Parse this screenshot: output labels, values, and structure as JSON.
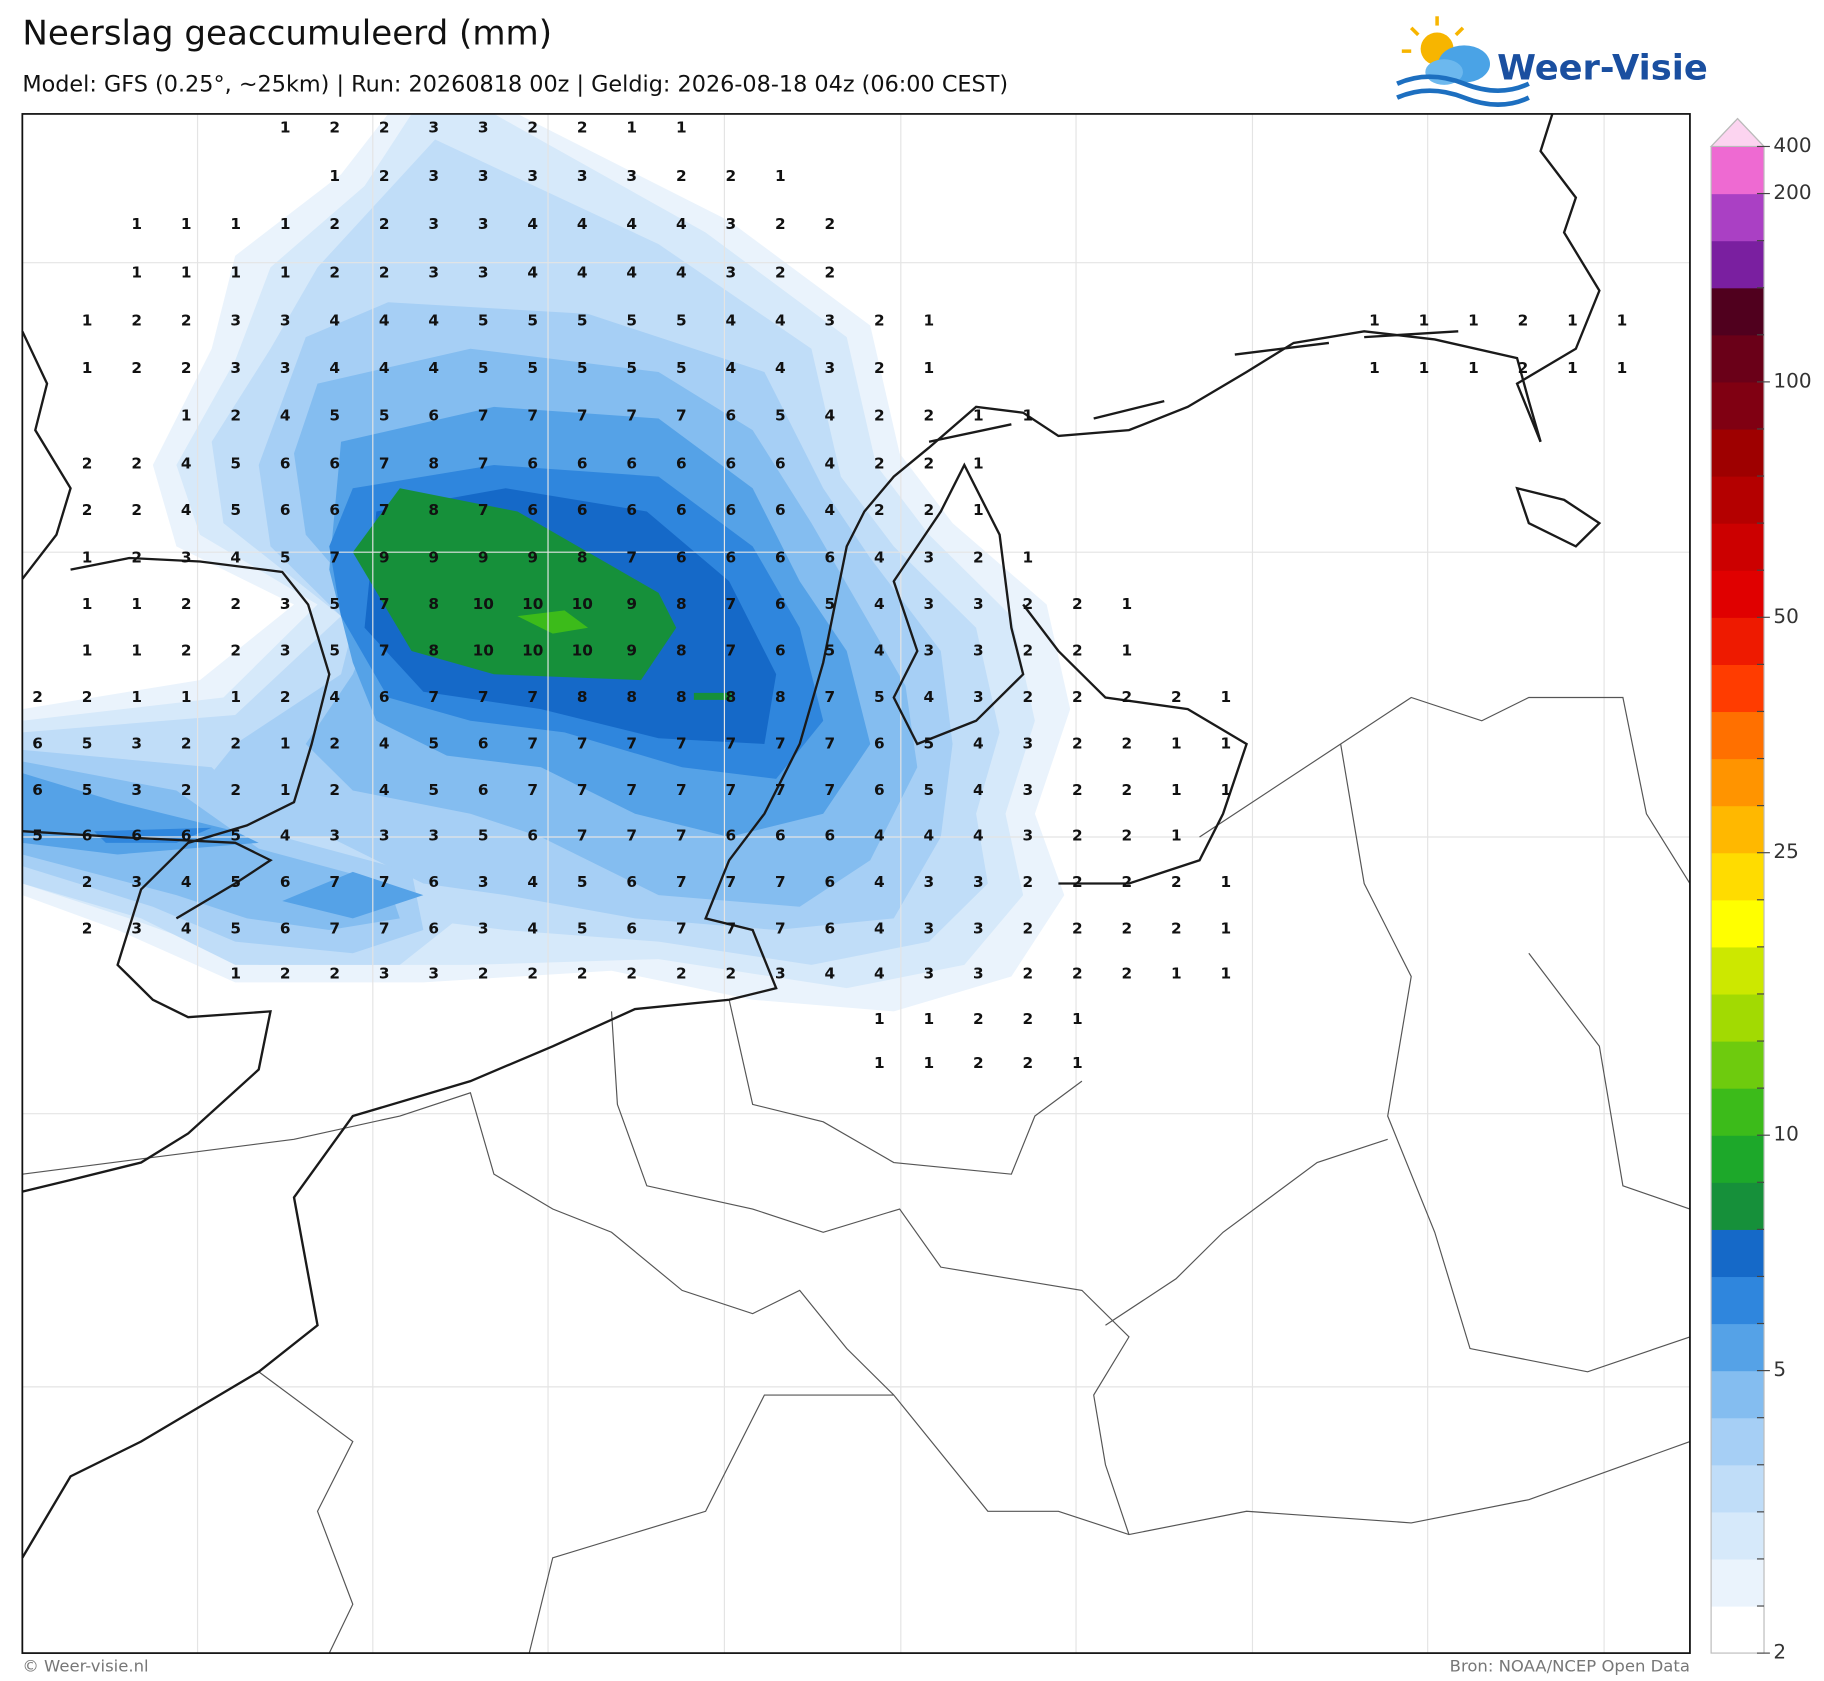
{
  "header": {
    "title": "Neerslag geaccumuleerd (mm)",
    "subtitle": "Model: GFS (0.25°, ~25km)  |  Run: 20260818 00z  |  Geldig: 2026-08-18 04z (06:00 CEST)"
  },
  "logo": "Weer-Visie",
  "grid": {
    "rows": [
      [
        null,
        null,
        null,
        null,
        null,
        1,
        2,
        2,
        3,
        3,
        2,
        2,
        1,
        1,
        null,
        null,
        null,
        null,
        null,
        null,
        null,
        null,
        null,
        null,
        null,
        null,
        null,
        null,
        null,
        null,
        null,
        null,
        null
      ],
      [
        null,
        null,
        null,
        null,
        null,
        null,
        1,
        2,
        3,
        3,
        3,
        3,
        3,
        2,
        2,
        1,
        null,
        null,
        null,
        null,
        null,
        null,
        null,
        null,
        null,
        null,
        null,
        null,
        null,
        null,
        null,
        null,
        null
      ],
      [
        null,
        null,
        1,
        1,
        1,
        1,
        2,
        2,
        3,
        3,
        4,
        4,
        4,
        4,
        3,
        2,
        2,
        null,
        null,
        null,
        null,
        null,
        null,
        null,
        null,
        null,
        null,
        null,
        null,
        null,
        null,
        null,
        null
      ],
      [
        null,
        null,
        1,
        1,
        1,
        1,
        2,
        2,
        3,
        3,
        4,
        4,
        4,
        4,
        3,
        2,
        2,
        null,
        null,
        null,
        null,
        null,
        null,
        null,
        null,
        null,
        null,
        null,
        null,
        null,
        null,
        null,
        null
      ],
      [
        null,
        1,
        2,
        2,
        3,
        3,
        4,
        4,
        4,
        5,
        5,
        5,
        5,
        5,
        4,
        4,
        3,
        2,
        1,
        null,
        null,
        null,
        null,
        null,
        null,
        null,
        null,
        1,
        1,
        1,
        2,
        1,
        1
      ],
      [
        null,
        1,
        2,
        2,
        3,
        3,
        4,
        4,
        4,
        5,
        5,
        5,
        5,
        5,
        4,
        4,
        3,
        2,
        1,
        null,
        null,
        null,
        null,
        null,
        null,
        null,
        null,
        1,
        1,
        1,
        2,
        1,
        1
      ],
      [
        null,
        null,
        null,
        1,
        2,
        4,
        5,
        5,
        6,
        7,
        7,
        7,
        7,
        7,
        6,
        5,
        4,
        2,
        2,
        1,
        1,
        null,
        null,
        null,
        null,
        null,
        null,
        null,
        null,
        null,
        null,
        null,
        null
      ],
      [
        null,
        2,
        2,
        4,
        5,
        6,
        6,
        7,
        8,
        7,
        6,
        6,
        6,
        6,
        6,
        6,
        4,
        2,
        2,
        1,
        null,
        null,
        null,
        null,
        null,
        null,
        null,
        null,
        null,
        null,
        null,
        null,
        null
      ],
      [
        null,
        2,
        2,
        4,
        5,
        6,
        6,
        7,
        8,
        7,
        6,
        6,
        6,
        6,
        6,
        6,
        4,
        2,
        2,
        1,
        null,
        null,
        null,
        null,
        null,
        null,
        null,
        null,
        null,
        null,
        null,
        null,
        null
      ],
      [
        null,
        1,
        2,
        3,
        4,
        5,
        7,
        9,
        9,
        9,
        9,
        8,
        7,
        6,
        6,
        6,
        6,
        4,
        3,
        2,
        1,
        null,
        null,
        null,
        null,
        null,
        null,
        null,
        null,
        null,
        null,
        null,
        null
      ],
      [
        null,
        1,
        1,
        2,
        2,
        3,
        5,
        7,
        8,
        10,
        10,
        10,
        9,
        8,
        7,
        6,
        5,
        4,
        3,
        3,
        2,
        2,
        1,
        null,
        null,
        null,
        null,
        null,
        null,
        null,
        null,
        null,
        null
      ],
      [
        null,
        1,
        1,
        2,
        2,
        3,
        5,
        7,
        8,
        10,
        10,
        10,
        9,
        8,
        7,
        6,
        5,
        4,
        3,
        3,
        2,
        2,
        1,
        null,
        null,
        null,
        null,
        null,
        null,
        null,
        null,
        null,
        null
      ],
      [
        2,
        2,
        1,
        1,
        1,
        2,
        4,
        6,
        7,
        7,
        7,
        8,
        8,
        8,
        8,
        8,
        7,
        5,
        4,
        3,
        2,
        2,
        2,
        2,
        1,
        null,
        null,
        null,
        null,
        null,
        null,
        null,
        null
      ],
      [
        6,
        5,
        3,
        2,
        2,
        1,
        2,
        4,
        5,
        6,
        7,
        7,
        7,
        7,
        7,
        7,
        7,
        6,
        5,
        4,
        3,
        2,
        2,
        1,
        1,
        null,
        null,
        null,
        null,
        null,
        null,
        null,
        null
      ],
      [
        6,
        5,
        3,
        2,
        2,
        1,
        2,
        4,
        5,
        6,
        7,
        7,
        7,
        7,
        7,
        7,
        7,
        6,
        5,
        4,
        3,
        2,
        2,
        1,
        1,
        null,
        null,
        null,
        null,
        null,
        null,
        null,
        null
      ],
      [
        5,
        6,
        6,
        6,
        5,
        4,
        3,
        3,
        3,
        5,
        6,
        7,
        7,
        7,
        6,
        6,
        6,
        4,
        4,
        4,
        3,
        2,
        2,
        1,
        null,
        null,
        null,
        null,
        null,
        null,
        null,
        null,
        null
      ],
      [
        null,
        2,
        3,
        4,
        5,
        6,
        7,
        7,
        6,
        3,
        4,
        5,
        6,
        7,
        7,
        7,
        6,
        4,
        3,
        3,
        2,
        2,
        2,
        2,
        1,
        null,
        null,
        null,
        null,
        null,
        null,
        null,
        null
      ],
      [
        null,
        2,
        3,
        4,
        5,
        6,
        7,
        7,
        6,
        3,
        4,
        5,
        6,
        7,
        7,
        7,
        6,
        4,
        3,
        3,
        2,
        2,
        2,
        2,
        1,
        null,
        null,
        null,
        null,
        null,
        null,
        null,
        null
      ],
      [
        null,
        null,
        null,
        null,
        1,
        2,
        2,
        3,
        3,
        2,
        2,
        2,
        2,
        2,
        2,
        3,
        4,
        4,
        3,
        3,
        2,
        2,
        2,
        1,
        1,
        null,
        null,
        null,
        null,
        null,
        null,
        null,
        null
      ],
      [
        null,
        null,
        null,
        null,
        null,
        null,
        null,
        null,
        null,
        null,
        null,
        null,
        null,
        null,
        null,
        null,
        null,
        1,
        1,
        2,
        2,
        1,
        null,
        null,
        null,
        null,
        null,
        null,
        null,
        null,
        null,
        null,
        null
      ],
      [
        null,
        null,
        null,
        null,
        null,
        null,
        null,
        null,
        null,
        null,
        null,
        null,
        null,
        null,
        null,
        null,
        null,
        1,
        1,
        2,
        2,
        1,
        null,
        null,
        null,
        null,
        null,
        null,
        null,
        null,
        null,
        null,
        null
      ]
    ]
  },
  "colorbar": {
    "levels": [
      2,
      2.5,
      3,
      3.5,
      4,
      4.5,
      5,
      6,
      7,
      8,
      9,
      10,
      12.5,
      15,
      17.5,
      20,
      22.5,
      25,
      30,
      35,
      40,
      45,
      50,
      60,
      70,
      80,
      90,
      100,
      125,
      150,
      175,
      200,
      400
    ],
    "colors": [
      "#ffffff",
      "#eaf3fc",
      "#d6e9fa",
      "#c0ddf8",
      "#a6cff5",
      "#84bdf0",
      "#55a2e7",
      "#2f86dd",
      "#1569c8",
      "#16903a",
      "#1da82a",
      "#3cbb1a",
      "#6ecb0e",
      "#a2da02",
      "#cce800",
      "#ffff00",
      "#ffdc00",
      "#ffb800",
      "#ff9400",
      "#ff7000",
      "#ff3c00",
      "#ee1a00",
      "#e00000",
      "#cc0000",
      "#b40000",
      "#9e0000",
      "#800012",
      "#6a0018",
      "#50001e",
      "#7a1fa0",
      "#aa40c4",
      "#ee6ad2"
    ],
    "extend_color": "#fcd4f0",
    "ticks": [
      2,
      5,
      10,
      25,
      50,
      100,
      200,
      400
    ]
  },
  "footer": {
    "left": "© Weer-visie.nl",
    "right": "Bron: NOAA/NCEP Open Data"
  }
}
